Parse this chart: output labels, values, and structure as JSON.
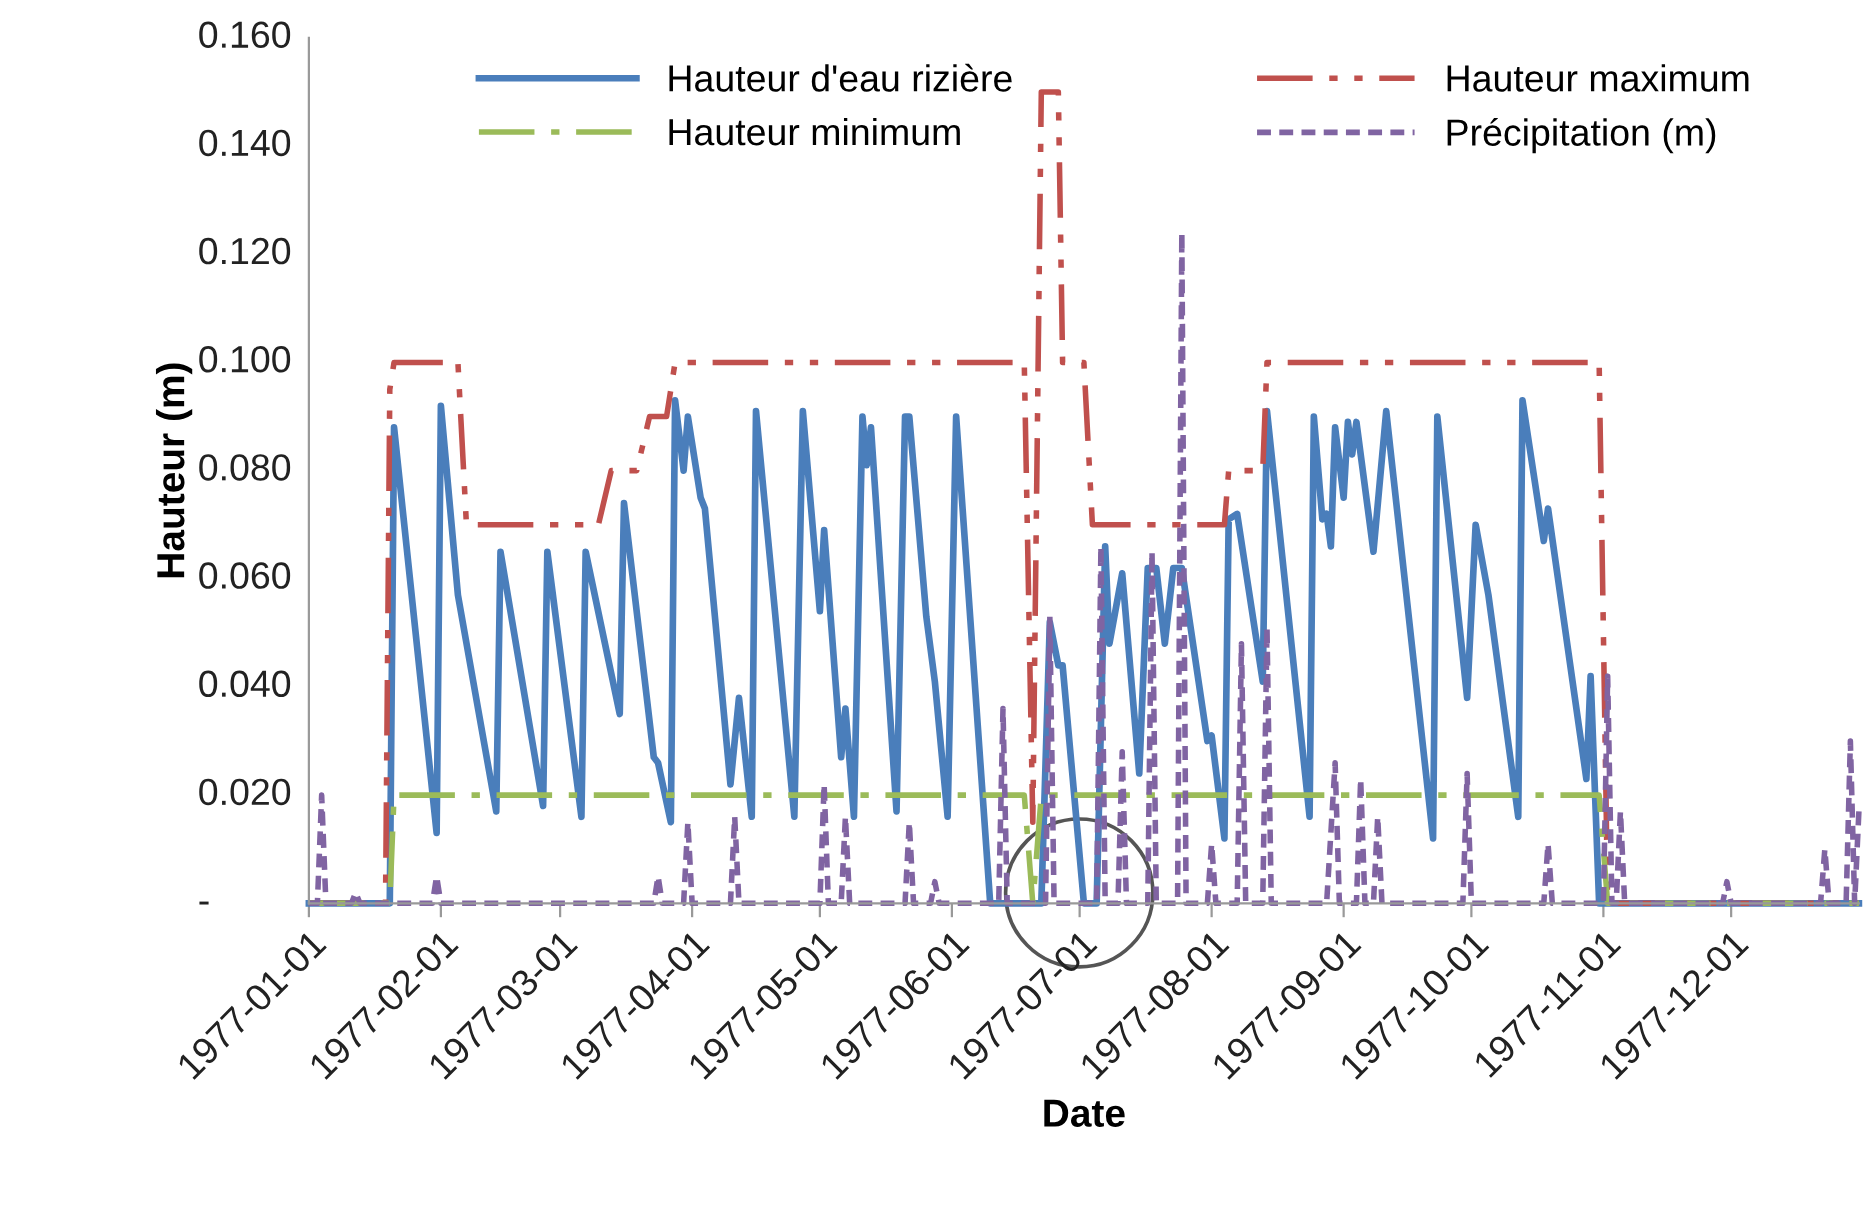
{
  "chart_data": {
    "type": "line",
    "xlabel": "Date",
    "ylabel": "Hauteur (m)",
    "xlim": [
      "1977-01-01",
      "1977-12-31"
    ],
    "xticks": [
      "1977-01-01",
      "1977-02-01",
      "1977-03-01",
      "1977-04-01",
      "1977-05-01",
      "1977-06-01",
      "1977-07-01",
      "1977-08-01",
      "1977-09-01",
      "1977-10-01",
      "1977-11-01",
      "1977-12-01"
    ],
    "ylim": [
      0,
      0.16
    ],
    "yticks": [
      {
        "value": 0,
        "label": "-"
      },
      {
        "value": 0.02,
        "label": "0.020"
      },
      {
        "value": 0.04,
        "label": "0.040"
      },
      {
        "value": 0.06,
        "label": "0.060"
      },
      {
        "value": 0.08,
        "label": "0.080"
      },
      {
        "value": 0.1,
        "label": "0.100"
      },
      {
        "value": 0.12,
        "label": "0.120"
      },
      {
        "value": 0.14,
        "label": "0.140"
      },
      {
        "value": 0.16,
        "label": "0.160"
      }
    ],
    "grid": false,
    "legend": "top",
    "marker": "none",
    "series": [
      {
        "name": "Hauteur d'eau rizière",
        "color": "#4a7ebb",
        "line_style": "solid",
        "x": [
          "1977-01-01",
          "1977-01-20",
          "1977-01-21",
          "1977-01-31",
          "1977-02-01",
          "1977-02-05",
          "1977-02-14",
          "1977-02-15",
          "1977-02-25",
          "1977-02-26",
          "1977-03-06",
          "1977-03-07",
          "1977-03-15",
          "1977-03-16",
          "1977-03-23",
          "1977-03-24",
          "1977-03-27",
          "1977-03-28",
          "1977-03-30",
          "1977-03-31",
          "1977-04-03",
          "1977-04-04",
          "1977-04-10",
          "1977-04-12",
          "1977-04-15",
          "1977-04-16",
          "1977-04-25",
          "1977-04-27",
          "1977-05-01",
          "1977-05-02",
          "1977-05-06",
          "1977-05-07",
          "1977-05-09",
          "1977-05-11",
          "1977-05-12",
          "1977-05-13",
          "1977-05-19",
          "1977-05-21",
          "1977-05-22",
          "1977-05-26",
          "1977-05-28",
          "1977-05-31",
          "1977-06-02",
          "1977-06-10",
          "1977-06-22",
          "1977-06-24",
          "1977-06-26",
          "1977-06-27",
          "1977-07-02",
          "1977-07-05",
          "1977-07-07",
          "1977-07-08",
          "1977-07-11",
          "1977-07-15",
          "1977-07-17",
          "1977-07-19",
          "1977-07-21",
          "1977-07-23",
          "1977-07-25",
          "1977-07-31",
          "1977-08-01",
          "1977-08-04",
          "1977-08-05",
          "1977-08-07",
          "1977-08-13",
          "1977-08-14",
          "1977-08-24",
          "1977-08-25",
          "1977-08-27",
          "1977-08-28",
          "1977-08-29",
          "1977-08-30",
          "1977-09-01",
          "1977-09-02",
          "1977-09-03",
          "1977-09-04",
          "1977-09-08",
          "1977-09-11",
          "1977-09-22",
          "1977-09-23",
          "1977-09-30",
          "1977-10-02",
          "1977-10-05",
          "1977-10-12",
          "1977-10-13",
          "1977-10-18",
          "1977-10-19",
          "1977-10-28",
          "1977-10-29",
          "1977-10-31",
          "1977-12-31"
        ],
        "values": [
          0,
          0,
          0.088,
          0.013,
          0.092,
          0.057,
          0.017,
          0.065,
          0.018,
          0.065,
          0.016,
          0.065,
          0.035,
          0.074,
          0.027,
          0.026,
          0.015,
          0.093,
          0.08,
          0.09,
          0.075,
          0.073,
          0.022,
          0.038,
          0.016,
          0.091,
          0.016,
          0.091,
          0.054,
          0.069,
          0.027,
          0.036,
          0.016,
          0.09,
          0.081,
          0.088,
          0.017,
          0.09,
          0.09,
          0.053,
          0.041,
          0.016,
          0.09,
          0,
          0,
          0.052,
          0.044,
          0.044,
          0,
          0,
          0.066,
          0.048,
          0.061,
          0.024,
          0.062,
          0.062,
          0.048,
          0.062,
          0.062,
          0.03,
          0.031,
          0.012,
          0.071,
          0.072,
          0.041,
          0.091,
          0.016,
          0.09,
          0.071,
          0.072,
          0.066,
          0.088,
          0.075,
          0.089,
          0.083,
          0.089,
          0.065,
          0.091,
          0.012,
          0.09,
          0.038,
          0.07,
          0.057,
          0.016,
          0.093,
          0.067,
          0.073,
          0.023,
          0.042,
          0,
          0
        ]
      },
      {
        "name": "Hauteur maximum",
        "color": "#c0504d",
        "line_style": "dashdotdot",
        "x": [
          "1977-01-01",
          "1977-01-19",
          "1977-01-20",
          "1977-01-21",
          "1977-02-05",
          "1977-02-07",
          "1977-03-10",
          "1977-03-13",
          "1977-03-19",
          "1977-03-22",
          "1977-03-26",
          "1977-03-28",
          "1977-06-18",
          "1977-06-20",
          "1977-06-22",
          "1977-06-26",
          "1977-06-27",
          "1977-07-02",
          "1977-07-04",
          "1977-08-04",
          "1977-08-05",
          "1977-08-13",
          "1977-08-14",
          "1977-10-31",
          "1977-11-02",
          "1977-12-31"
        ],
        "values": [
          0,
          0,
          0.095,
          0.1,
          0.1,
          0.07,
          0.07,
          0.08,
          0.08,
          0.09,
          0.09,
          0.1,
          0.1,
          0.015,
          0.15,
          0.15,
          0.1,
          0.1,
          0.07,
          0.07,
          0.08,
          0.08,
          0.1,
          0.1,
          0,
          0
        ]
      },
      {
        "name": "Hauteur minimum",
        "color": "#9bbb59",
        "line_style": "dashdot",
        "x": [
          "1977-01-01",
          "1977-01-20",
          "1977-01-21",
          "1977-06-18",
          "1977-06-20",
          "1977-06-22",
          "1977-10-31",
          "1977-11-02",
          "1977-12-31"
        ],
        "values": [
          0,
          0,
          0.02,
          0.02,
          0,
          0.02,
          0.02,
          0,
          0
        ]
      },
      {
        "name": "Précipitation (m)",
        "color": "#8064a2",
        "line_style": "dotted",
        "x": [
          "1977-01-01",
          "1977-01-03",
          "1977-01-04",
          "1977-01-05",
          "1977-01-11",
          "1977-01-12",
          "1977-01-13",
          "1977-01-30",
          "1977-01-31",
          "1977-02-01",
          "1977-03-23",
          "1977-03-24",
          "1977-03-25",
          "1977-03-30",
          "1977-03-31",
          "1977-04-01",
          "1977-04-10",
          "1977-04-11",
          "1977-04-12",
          "1977-05-01",
          "1977-05-02",
          "1977-05-03",
          "1977-05-06",
          "1977-05-07",
          "1977-05-08",
          "1977-05-21",
          "1977-05-22",
          "1977-05-23",
          "1977-05-27",
          "1977-05-28",
          "1977-05-29",
          "1977-06-12",
          "1977-06-13",
          "1977-06-14",
          "1977-06-23",
          "1977-06-24",
          "1977-06-25",
          "1977-07-05",
          "1977-07-06",
          "1977-07-07",
          "1977-07-10",
          "1977-07-11",
          "1977-07-12",
          "1977-07-17",
          "1977-07-18",
          "1977-07-19",
          "1977-07-24",
          "1977-07-25",
          "1977-07-26",
          "1977-07-31",
          "1977-08-01",
          "1977-08-02",
          "1977-08-07",
          "1977-08-08",
          "1977-08-09",
          "1977-08-13",
          "1977-08-14",
          "1977-08-15",
          "1977-08-28",
          "1977-08-29",
          "1977-08-30",
          "1977-08-31",
          "1977-09-04",
          "1977-09-05",
          "1977-09-06",
          "1977-09-08",
          "1977-09-09",
          "1977-09-10",
          "1977-09-29",
          "1977-09-30",
          "1977-10-01",
          "1977-10-18",
          "1977-10-19",
          "1977-10-20",
          "1977-11-01",
          "1977-11-02",
          "1977-11-03",
          "1977-11-04",
          "1977-11-05",
          "1977-11-06",
          "1977-11-29",
          "1977-11-30",
          "1977-12-01",
          "1977-12-22",
          "1977-12-23",
          "1977-12-24",
          "1977-12-28",
          "1977-12-29",
          "1977-12-30",
          "1977-12-31"
        ],
        "values": [
          0,
          0,
          0.02,
          0,
          0,
          0.002,
          0,
          0,
          0.005,
          0,
          0,
          0.005,
          0,
          0,
          0.015,
          0,
          0,
          0.016,
          0,
          0,
          0.022,
          0,
          0,
          0.016,
          0,
          0,
          0.015,
          0,
          0,
          0.004,
          0,
          0,
          0.036,
          0,
          0,
          0.053,
          0,
          0,
          0.066,
          0,
          0,
          0.028,
          0,
          0,
          0.065,
          0,
          0,
          0.124,
          0,
          0,
          0.011,
          0,
          0,
          0.048,
          0,
          0,
          0.051,
          0,
          0,
          0.013,
          0.026,
          0,
          0,
          0.023,
          0,
          0,
          0.016,
          0,
          0,
          0.024,
          0,
          0,
          0.011,
          0,
          0,
          0.042,
          0,
          0,
          0.017,
          0,
          0,
          0.004,
          0,
          0,
          0.01,
          0,
          0,
          0.03,
          0,
          0.017
        ]
      }
    ]
  }
}
